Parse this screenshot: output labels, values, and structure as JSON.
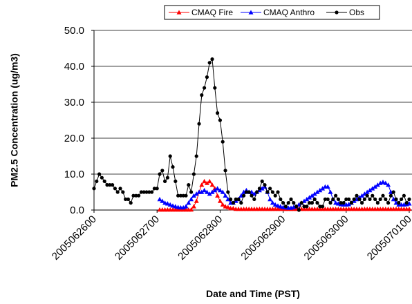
{
  "chart_data": {
    "type": "line",
    "y_label": "PM2.5 Concentration (ug/m3)",
    "x_label": "Date and Time (PST)",
    "categories": [
      "2005062600",
      null,
      null,
      null,
      null,
      null,
      null,
      null,
      null,
      null,
      null,
      null,
      null,
      null,
      null,
      null,
      null,
      null,
      null,
      null,
      null,
      null,
      null,
      null,
      "2005062700",
      null,
      null,
      null,
      null,
      null,
      null,
      null,
      null,
      null,
      null,
      null,
      null,
      null,
      null,
      null,
      null,
      null,
      null,
      null,
      null,
      null,
      null,
      null,
      "2005062800",
      null,
      null,
      null,
      null,
      null,
      null,
      null,
      null,
      null,
      null,
      null,
      null,
      null,
      null,
      null,
      null,
      null,
      null,
      null,
      null,
      null,
      null,
      null,
      "2005062900",
      null,
      null,
      null,
      null,
      null,
      null,
      null,
      null,
      null,
      null,
      null,
      null,
      null,
      null,
      null,
      null,
      null,
      null,
      null,
      null,
      null,
      null,
      null,
      "2005063000",
      null,
      null,
      null,
      null,
      null,
      null,
      null,
      null,
      null,
      null,
      null,
      null,
      null,
      null,
      null,
      null,
      null,
      null,
      null,
      null,
      null,
      null,
      null,
      "2005070100"
    ],
    "series": [
      {
        "name": "CMAQ Fire",
        "color": "#ff0000",
        "marker": "triangle",
        "values": [
          null,
          null,
          null,
          null,
          null,
          null,
          null,
          null,
          null,
          null,
          null,
          null,
          null,
          null,
          null,
          null,
          null,
          null,
          null,
          null,
          null,
          null,
          null,
          null,
          null,
          0.1,
          0.1,
          0.1,
          0.1,
          0.1,
          0.1,
          0.1,
          0.1,
          0.1,
          0.1,
          0.1,
          0.1,
          0.1,
          1,
          2.5,
          5,
          7,
          8,
          7.5,
          8,
          7,
          6,
          4,
          2.5,
          1.5,
          1,
          0.8,
          0.5,
          0.5,
          0.3,
          0.3,
          0.3,
          0.3,
          0.3,
          0.3,
          0.3,
          0.3,
          0.3,
          0.3,
          0.3,
          0.3,
          0.3,
          0.3,
          0.3,
          0.3,
          0.3,
          0.3,
          0.3,
          0.3,
          0.3,
          0.3,
          0.3,
          0.3,
          0.3,
          0.3,
          0.3,
          0.3,
          0.3,
          0.3,
          0.3,
          0.3,
          0.3,
          0.3,
          0.3,
          0.3,
          0.3,
          0.3,
          0.3,
          0.3,
          0.3,
          0.3,
          0.3,
          0.3,
          0.3,
          0.3,
          0.3,
          0.3,
          0.3,
          0.3,
          0.3,
          0.3,
          0.3,
          0.3,
          0.3,
          0.3,
          0.3,
          0.3,
          0.3,
          0.3,
          0.3,
          0.3,
          0.3,
          0.3,
          0.3,
          0.3,
          0.3
        ]
      },
      {
        "name": "CMAQ Anthro",
        "color": "#0000ff",
        "marker": "triangle",
        "values": [
          null,
          null,
          null,
          null,
          null,
          null,
          null,
          null,
          null,
          null,
          null,
          null,
          null,
          null,
          null,
          null,
          null,
          null,
          null,
          null,
          null,
          null,
          null,
          null,
          null,
          3,
          2.5,
          2,
          1.8,
          1.5,
          1.2,
          1,
          0.8,
          0.7,
          0.7,
          1,
          2,
          3,
          4,
          4.5,
          5,
          5,
          5.5,
          5,
          4.5,
          5,
          5.5,
          6,
          5.5,
          5,
          4,
          3,
          2,
          2,
          2.5,
          3,
          4,
          5,
          5.5,
          5,
          5,
          4.5,
          5,
          5.5,
          6,
          6.5,
          5,
          3,
          2,
          1.5,
          1.2,
          1,
          0.8,
          0.7,
          0.6,
          0.6,
          0.8,
          1,
          1.5,
          2,
          2.5,
          3,
          3.5,
          4,
          4.5,
          5,
          5.5,
          6,
          6.5,
          6.5,
          5,
          3,
          2,
          1.8,
          1.6,
          1.5,
          1.5,
          1.6,
          2,
          2.5,
          3,
          3.5,
          4,
          4.5,
          5,
          5.5,
          6,
          6.5,
          7,
          7.5,
          7.8,
          7.5,
          7,
          5,
          3,
          2,
          1.5,
          1.5,
          1.5,
          1.6,
          1.8
        ]
      },
      {
        "name": "Obs",
        "color": "#000000",
        "marker": "circle",
        "values": [
          6,
          8,
          10,
          9,
          8,
          7,
          7,
          7,
          6,
          5,
          6,
          5,
          3,
          3,
          2,
          4,
          4,
          4,
          5,
          5,
          5,
          5,
          5,
          6,
          6,
          10,
          11,
          8,
          9,
          15,
          12,
          8,
          4,
          4,
          4,
          4,
          7,
          5,
          10,
          15,
          24,
          32,
          34,
          37,
          41,
          42,
          34,
          27,
          25,
          19,
          11,
          5,
          3,
          2,
          3,
          3,
          2,
          4,
          5,
          5,
          4,
          3,
          5,
          6,
          8,
          7,
          5,
          6,
          5,
          4,
          5,
          3,
          2,
          1,
          2,
          3,
          2,
          1,
          0,
          2,
          1,
          1,
          2,
          2,
          3,
          2,
          1,
          1,
          3,
          3,
          2,
          3,
          4,
          3,
          2,
          2,
          3,
          3,
          2,
          3,
          4,
          3,
          2,
          3,
          4,
          3,
          4,
          3,
          2,
          3,
          4,
          3,
          2,
          4,
          5,
          3,
          2,
          3,
          4,
          2,
          3
        ]
      }
    ],
    "ylim": [
      0,
      50
    ],
    "yticks": [
      {
        "value": 0,
        "label": "0.0"
      },
      {
        "value": 10,
        "label": "10.0"
      },
      {
        "value": 20,
        "label": "20.0"
      },
      {
        "value": 30,
        "label": "30.0"
      },
      {
        "value": 40,
        "label": "40.0"
      },
      {
        "value": 50,
        "label": "50.0"
      }
    ],
    "grid": true,
    "legend": "top"
  }
}
